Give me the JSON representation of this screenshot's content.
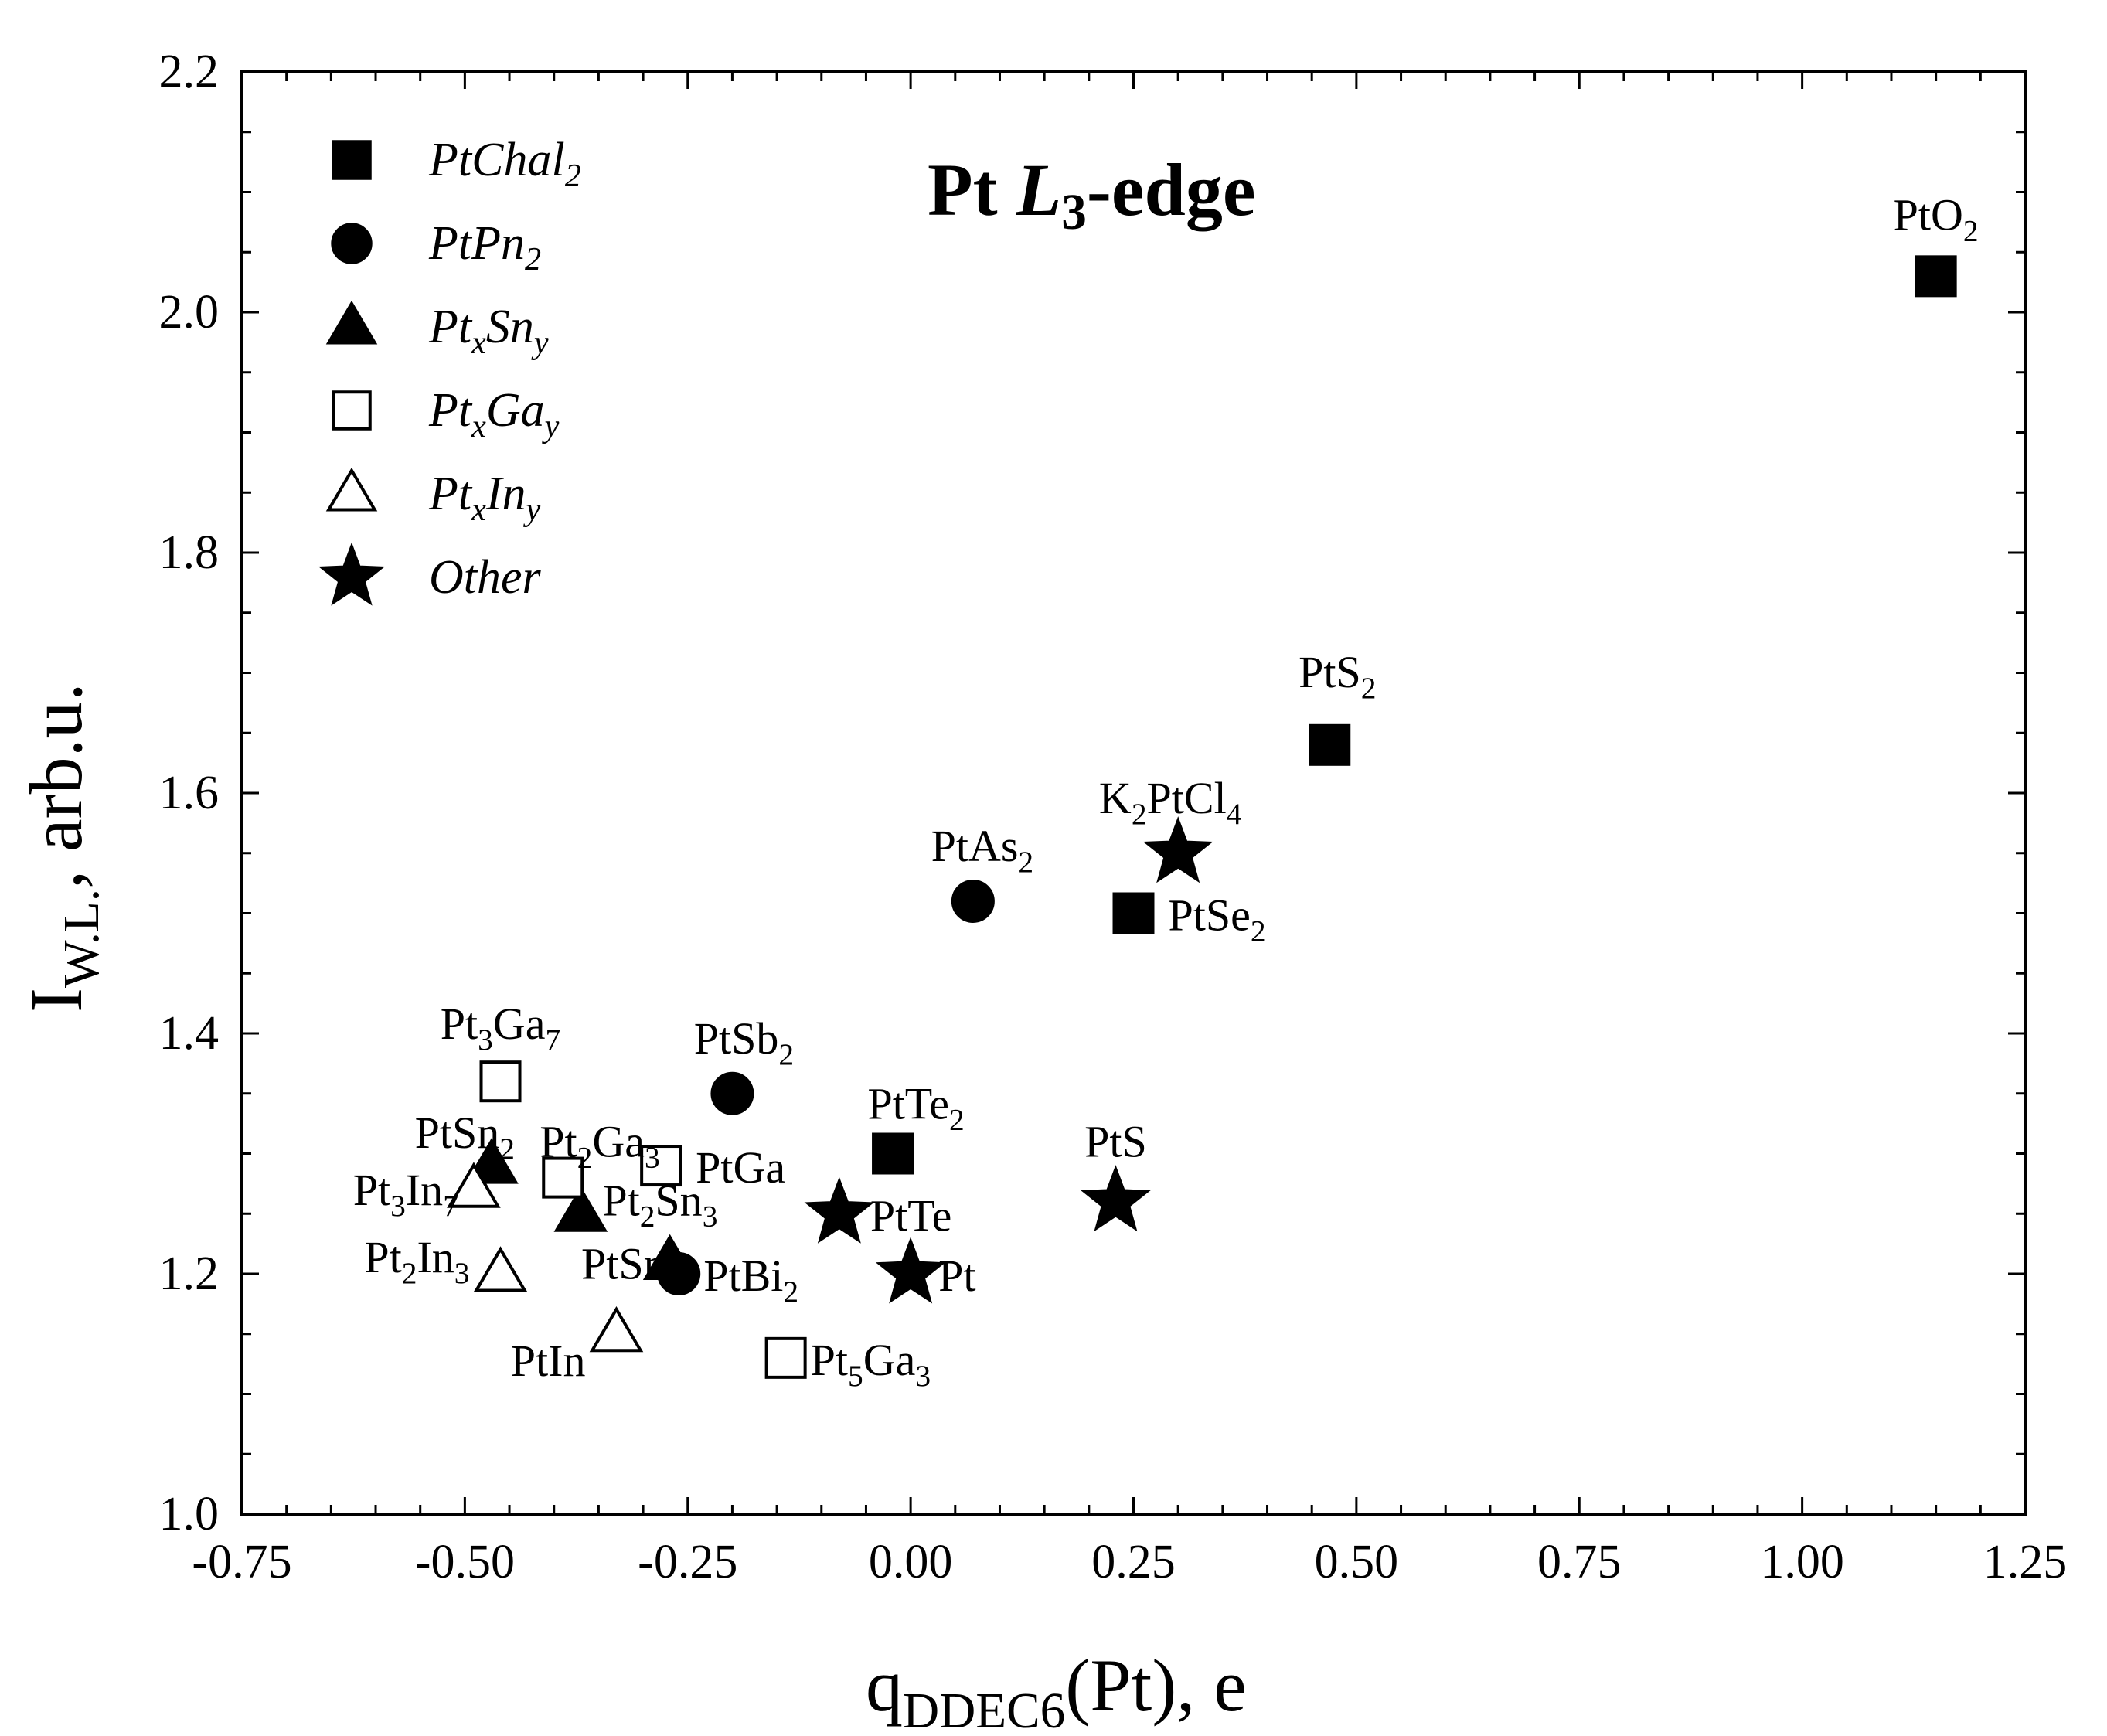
{
  "chart_data": {
    "type": "scatter",
    "title": {
      "main": "Pt ",
      "italic": "L",
      "sub": "3",
      "rest": "-edge"
    },
    "xlabel": {
      "main": "q",
      "sub": "DDEC6",
      "rest": "(Pt), e"
    },
    "ylabel": {
      "main": "I",
      "sub": "W.L.",
      "rest": ", arb.u."
    },
    "xlim": [
      -0.75,
      1.25
    ],
    "ylim": [
      1.0,
      2.2
    ],
    "x_major_ticks": [
      -0.75,
      -0.5,
      -0.25,
      0.0,
      0.25,
      0.5,
      0.75,
      1.0,
      1.25
    ],
    "x_tick_labels": [
      "-0.75",
      "-0.50",
      "-0.25",
      "0.00",
      "0.25",
      "0.50",
      "0.75",
      "1.00",
      "1.25"
    ],
    "y_major_ticks": [
      1.0,
      1.2,
      1.4,
      1.6,
      1.8,
      2.0,
      2.2
    ],
    "y_tick_labels": [
      "1.0",
      "1.2",
      "1.4",
      "1.6",
      "1.8",
      "2.0",
      "2.2"
    ],
    "x_minor_step": 0.05,
    "y_minor_step": 0.05,
    "legend_position": "top-left",
    "series": [
      {
        "name": "PtChal2",
        "legend": {
          "t": "PtChal",
          "s": "2",
          "t2": "",
          "s2": ""
        },
        "marker": "square",
        "filled": true,
        "points": [
          {
            "x": 1.15,
            "y": 2.03,
            "label": {
              "t": "PtO",
              "s": "2"
            }
          },
          {
            "x": 0.47,
            "y": 1.64,
            "label": {
              "t": "PtS",
              "s": "2"
            }
          },
          {
            "x": 0.25,
            "y": 1.5,
            "label": {
              "t": "PtSe",
              "s": "2"
            }
          },
          {
            "x": -0.02,
            "y": 1.3,
            "label": {
              "t": "PtTe",
              "s": "2"
            }
          }
        ]
      },
      {
        "name": "PtPn2",
        "legend": {
          "t": "PtPn",
          "s": "2",
          "t2": "",
          "s2": ""
        },
        "marker": "circle",
        "filled": true,
        "points": [
          {
            "x": 0.07,
            "y": 1.51,
            "label": {
              "t": "PtAs",
              "s": "2"
            }
          },
          {
            "x": -0.2,
            "y": 1.35,
            "label": {
              "t": "PtSb",
              "s": "2"
            }
          },
          {
            "x": -0.26,
            "y": 1.2,
            "label": {
              "t": "PtBi",
              "s": "2"
            }
          }
        ]
      },
      {
        "name": "PtxSny",
        "legend": {
          "t": "Pt",
          "s": "x",
          "t2": "Sn",
          "s2": "y"
        },
        "marker": "triangle",
        "filled": true,
        "points": [
          {
            "x": -0.47,
            "y": 1.29,
            "label": {
              "t": "PtSn",
              "s": "2"
            }
          },
          {
            "x": -0.37,
            "y": 1.25,
            "label": {
              "t": "Pt",
              "s": "2",
              "t2": "Sn",
              "s2": "3"
            }
          },
          {
            "x": -0.27,
            "y": 1.21,
            "label": {
              "t": "PtSn",
              "s": ""
            }
          }
        ]
      },
      {
        "name": "PtxGay",
        "legend": {
          "t": "Pt",
          "s": "x",
          "t2": "Ga",
          "s2": "y"
        },
        "marker": "square",
        "filled": false,
        "points": [
          {
            "x": -0.46,
            "y": 1.36,
            "label": {
              "t": "Pt",
              "s": "3",
              "t2": "Ga",
              "s2": "7"
            }
          },
          {
            "x": -0.39,
            "y": 1.28,
            "label": {
              "t": "Pt",
              "s": "2",
              "t2": "Ga",
              "s2": "3"
            }
          },
          {
            "x": -0.28,
            "y": 1.29,
            "label": {
              "t": "PtGa",
              "s": ""
            }
          },
          {
            "x": -0.14,
            "y": 1.13,
            "label": {
              "t": "Pt",
              "s": "5",
              "t2": "Ga",
              "s2": "3"
            }
          }
        ]
      },
      {
        "name": "PtxIny",
        "legend": {
          "t": "Pt",
          "s": "x",
          "t2": "In",
          "s2": "y"
        },
        "marker": "triangle",
        "filled": false,
        "points": [
          {
            "x": -0.49,
            "y": 1.27,
            "label": {
              "t": "Pt",
              "s": "3",
              "t2": "In",
              "s2": "7"
            }
          },
          {
            "x": -0.46,
            "y": 1.2,
            "label": {
              "t": "Pt",
              "s": "2",
              "t2": "In",
              "s2": "3"
            }
          },
          {
            "x": -0.33,
            "y": 1.15,
            "label": {
              "t": "PtIn",
              "s": ""
            }
          }
        ]
      },
      {
        "name": "Other",
        "legend": {
          "t": "Other",
          "s": "",
          "t2": "",
          "s2": ""
        },
        "marker": "star",
        "filled": true,
        "points": [
          {
            "x": 0.3,
            "y": 1.55,
            "label": {
              "t": "K",
              "s": "2",
              "t2": "PtCl",
              "s2": "4"
            }
          },
          {
            "x": 0.23,
            "y": 1.26,
            "label": {
              "t": "PtS",
              "s": ""
            }
          },
          {
            "x": -0.08,
            "y": 1.25,
            "label": {
              "t": "PtTe",
              "s": ""
            }
          },
          {
            "x": 0.0,
            "y": 1.2,
            "label": {
              "t": "Pt",
              "s": ""
            }
          }
        ]
      }
    ]
  }
}
